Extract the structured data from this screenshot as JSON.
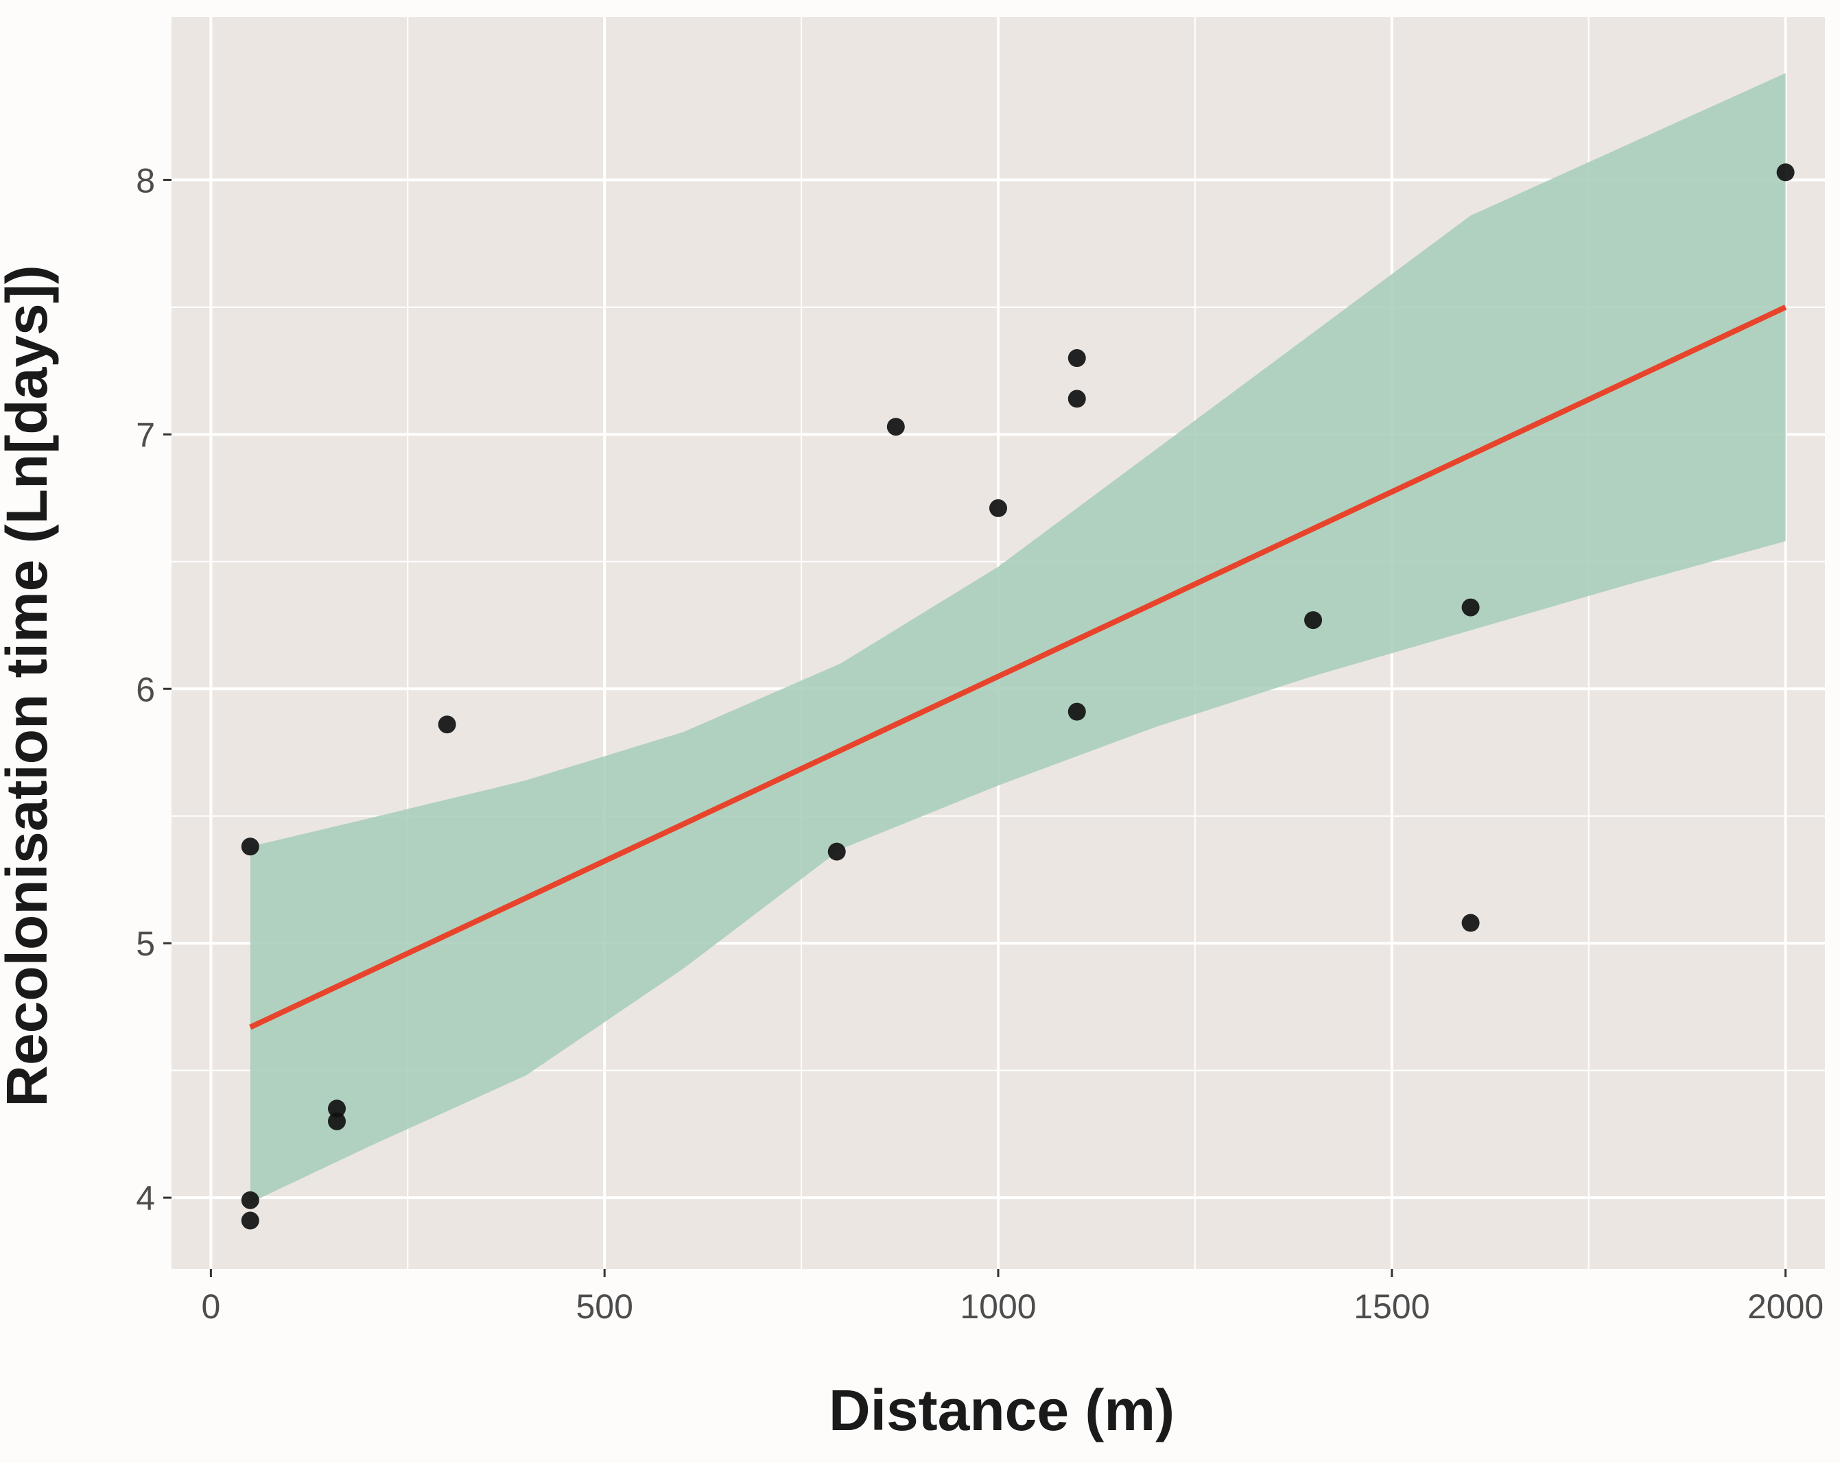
{
  "chart_data": {
    "type": "scatter",
    "title": "",
    "xlabel": "Distance (m)",
    "ylabel": "Recolonisation time (Ln[days])",
    "xlim": [
      -50,
      2050
    ],
    "ylim": [
      3.72,
      8.64
    ],
    "x_ticks": [
      0,
      500,
      1000,
      1500,
      2000
    ],
    "y_ticks": [
      4,
      5,
      6,
      7,
      8
    ],
    "x_tick_labels": [
      "0",
      "500",
      "1000",
      "1500",
      "2000"
    ],
    "y_tick_labels": [
      "4",
      "5",
      "6",
      "7",
      "8"
    ],
    "grid": true,
    "legend": "none",
    "points": [
      {
        "x": 50,
        "y": 3.91
      },
      {
        "x": 50,
        "y": 3.99
      },
      {
        "x": 50,
        "y": 5.38
      },
      {
        "x": 160,
        "y": 4.3
      },
      {
        "x": 160,
        "y": 4.35
      },
      {
        "x": 300,
        "y": 5.86
      },
      {
        "x": 795,
        "y": 5.36
      },
      {
        "x": 870,
        "y": 7.03
      },
      {
        "x": 1000,
        "y": 6.71
      },
      {
        "x": 1100,
        "y": 7.3
      },
      {
        "x": 1100,
        "y": 7.14
      },
      {
        "x": 1100,
        "y": 5.91
      },
      {
        "x": 1400,
        "y": 6.27
      },
      {
        "x": 1600,
        "y": 6.32
      },
      {
        "x": 1600,
        "y": 5.08
      },
      {
        "x": 2000,
        "y": 8.03
      }
    ],
    "fit_line": {
      "x": [
        50,
        2000
      ],
      "y": [
        4.67,
        7.5
      ]
    },
    "confidence_band": {
      "x": [
        50,
        200,
        400,
        600,
        800,
        1000,
        1200,
        1400,
        1600,
        1800,
        2000
      ],
      "upper": [
        5.38,
        5.49,
        5.64,
        5.83,
        6.1,
        6.48,
        6.94,
        7.4,
        7.86,
        8.14,
        8.42
      ],
      "lower": [
        3.98,
        4.2,
        4.48,
        4.9,
        5.37,
        5.62,
        5.85,
        6.05,
        6.23,
        6.41,
        6.58
      ]
    },
    "colors": {
      "panel_background": "#ebe6e2",
      "grid": "#ffffff",
      "points": "#111111",
      "fit_line": "#e8432b",
      "confidence_band": "#a6cdb8"
    }
  }
}
